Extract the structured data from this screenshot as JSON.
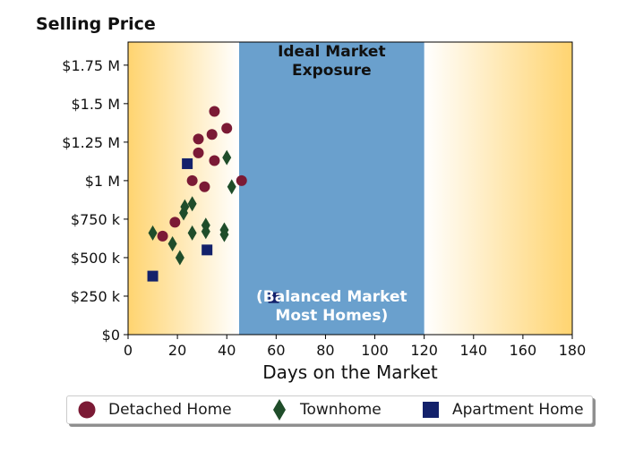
{
  "chart_data": {
    "type": "scatter",
    "y_title": "Selling Price",
    "xlabel": "Days on the Market",
    "xlim": [
      0,
      180
    ],
    "ylim": [
      0,
      1900000
    ],
    "x_ticks": [
      0,
      20,
      40,
      60,
      80,
      100,
      120,
      140,
      160,
      180
    ],
    "y_ticks": [
      {
        "value": 0,
        "label": "$0"
      },
      {
        "value": 250000,
        "label": "$250 k"
      },
      {
        "value": 500000,
        "label": "$500 k"
      },
      {
        "value": 750000,
        "label": "$750 k"
      },
      {
        "value": 1000000,
        "label": "$1 M"
      },
      {
        "value": 1250000,
        "label": "$1.25 M"
      },
      {
        "value": 1500000,
        "label": "$1.5 M"
      },
      {
        "value": 1750000,
        "label": "$1.75 M"
      }
    ],
    "band": {
      "x_range": [
        45,
        120
      ],
      "color": "#6aa0cd",
      "title": "Ideal Market\nExposure",
      "subtitle": "(Balanced Market\nMost Homes)"
    },
    "background_gradient": {
      "edge": "#ffd470",
      "center": "#ffffff"
    },
    "legend_position": "bottom",
    "series": [
      {
        "name": "Detached Home",
        "marker": "circle",
        "color": "#7b1a35",
        "points": [
          [
            14,
            640000
          ],
          [
            19,
            730000
          ],
          [
            26,
            1000000
          ],
          [
            28.5,
            1180000
          ],
          [
            28.5,
            1270000
          ],
          [
            31,
            960000
          ],
          [
            34,
            1300000
          ],
          [
            35,
            1130000
          ],
          [
            35,
            1450000
          ],
          [
            40,
            1340000
          ],
          [
            46,
            1000000
          ]
        ]
      },
      {
        "name": "Townhome",
        "marker": "diamond",
        "color": "#1f4d2a",
        "points": [
          [
            10,
            660000
          ],
          [
            18,
            590000
          ],
          [
            21,
            500000
          ],
          [
            22.5,
            790000
          ],
          [
            23,
            830000
          ],
          [
            26,
            660000
          ],
          [
            26,
            850000
          ],
          [
            31.5,
            670000
          ],
          [
            31.5,
            710000
          ],
          [
            39,
            650000
          ],
          [
            39,
            680000
          ],
          [
            40,
            1150000
          ],
          [
            42,
            960000
          ]
        ]
      },
      {
        "name": "Apartment Home",
        "marker": "square",
        "color": "#13216b",
        "points": [
          [
            10,
            380000
          ],
          [
            24,
            1110000
          ],
          [
            32,
            550000
          ],
          [
            59,
            240000
          ]
        ]
      }
    ]
  }
}
